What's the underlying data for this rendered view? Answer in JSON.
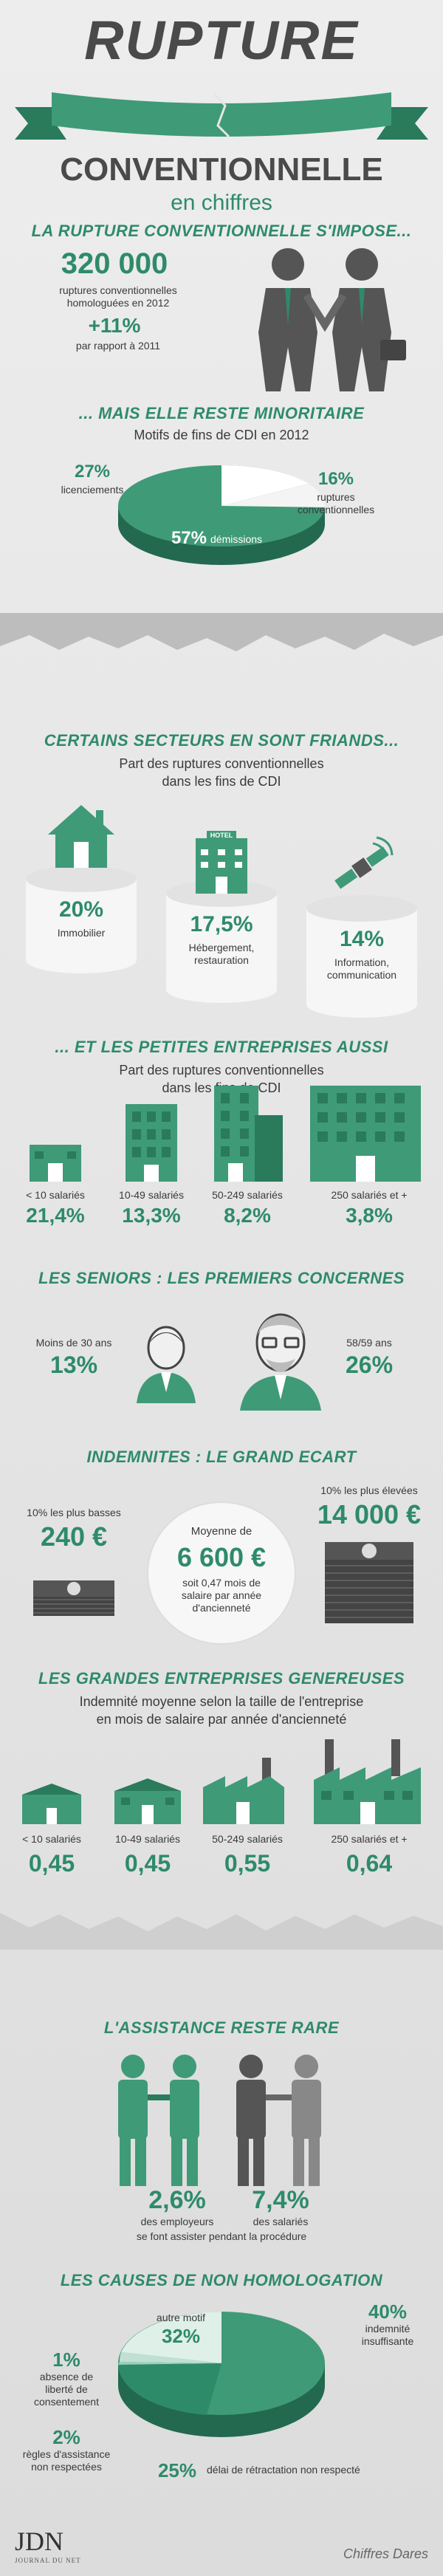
{
  "header": {
    "title_top": "RUPTURE",
    "title_mid": "CONVENTIONNELLE",
    "title_sub": "en chiffres"
  },
  "s1": {
    "title": "LA RUPTURE CONVENTIONNELLE S'IMPOSE...",
    "number": "320 000",
    "number_label": "ruptures conventionnelles homologuées en 2012",
    "growth": "+11%",
    "growth_label": "par rapport à 2011"
  },
  "s2": {
    "title": "... MAIS ELLE RESTE MINORITAIRE",
    "subtitle": "Motifs de fins de CDI en 2012",
    "slices": [
      {
        "value": "27%",
        "label": "licenciements"
      },
      {
        "value": "16%",
        "label": "ruptures conventionnelles"
      },
      {
        "value": "57%",
        "label": "démissions"
      }
    ]
  },
  "s3": {
    "title": "CERTAINS SECTEURS EN SONT FRIANDS...",
    "subtitle_1": "Part des ruptures conventionnelles",
    "subtitle_2": "dans les fins de CDI",
    "hotel_sign": "HOTEL",
    "items": [
      {
        "value": "20%",
        "label": "Immobilier"
      },
      {
        "value": "17,5%",
        "label": "Hébergement, restauration"
      },
      {
        "value": "14%",
        "label": "Information, communication"
      }
    ]
  },
  "s4": {
    "title": "... ET LES PETITES ENTREPRISES AUSSI",
    "subtitle_1": "Part des ruptures conventionnelles",
    "subtitle_2": "dans les fins de CDI",
    "items": [
      {
        "label": "< 10 salariés",
        "value": "21,4%"
      },
      {
        "label": "10-49 salariés",
        "value": "13,3%"
      },
      {
        "label": "50-249 salariés",
        "value": "8,2%"
      },
      {
        "label": "250 salariés et +",
        "value": "3,8%"
      }
    ]
  },
  "s5": {
    "title": "LES SENIORS : LES PREMIERS CONCERNES",
    "young_label": "Moins de 30 ans",
    "young_value": "13%",
    "senior_label": "58/59 ans",
    "senior_value": "26%"
  },
  "s6": {
    "title": "INDEMNITES : LE GRAND ECART",
    "low_label": "10% les plus basses",
    "low_value": "240 €",
    "mid_label": "Moyenne de",
    "mid_value": "6 600 €",
    "mid_note": "soit 0,47 mois de salaire par année d'ancienneté",
    "high_label": "10% les plus élevées",
    "high_value": "14 000 €"
  },
  "s7": {
    "title": "LES GRANDES ENTREPRISES GENEREUSES",
    "subtitle_1": "Indemnité moyenne selon la taille de l'entreprise",
    "subtitle_2": "en mois de salaire par année d'ancienneté",
    "items": [
      {
        "label": "< 10 salariés",
        "value": "0,45"
      },
      {
        "label": "10-49 salariés",
        "value": "0,45"
      },
      {
        "label": "50-249 salariés",
        "value": "0,55"
      },
      {
        "label": "250 salariés et +",
        "value": "0,64"
      }
    ]
  },
  "s8": {
    "title": "L'ASSISTANCE RESTE RARE",
    "employers_value": "2,6%",
    "employers_label": "des employeurs",
    "employees_value": "7,4%",
    "employees_label": "des salariés",
    "footnote": "se font assister pendant la procédure"
  },
  "s9": {
    "title": "LES CAUSES DE NON HOMOLOGATION",
    "slices": [
      {
        "value": "40%",
        "label": "indemnité insuffisante"
      },
      {
        "value": "25%",
        "label": "délai de rétractation non respecté"
      },
      {
        "value": "32%",
        "label": "autre motif"
      },
      {
        "value": "2%",
        "label": "règles d'assistance non respectées"
      },
      {
        "value": "1%",
        "label": "absence de liberté de consentement"
      }
    ]
  },
  "footer": {
    "logo": "JDN",
    "logo_sub": "JOURNAL DU NET",
    "source": "Chiffres Dares"
  },
  "colors": {
    "accent": "#2e8b6a",
    "dark": "#3a3a3a",
    "ribbon": "#3f9a78"
  },
  "icons": [
    "handshake-icon",
    "house-icon",
    "hotel-icon",
    "satellite-icon",
    "building-icon",
    "person-icon",
    "money-stack-icon",
    "factory-icon"
  ]
}
